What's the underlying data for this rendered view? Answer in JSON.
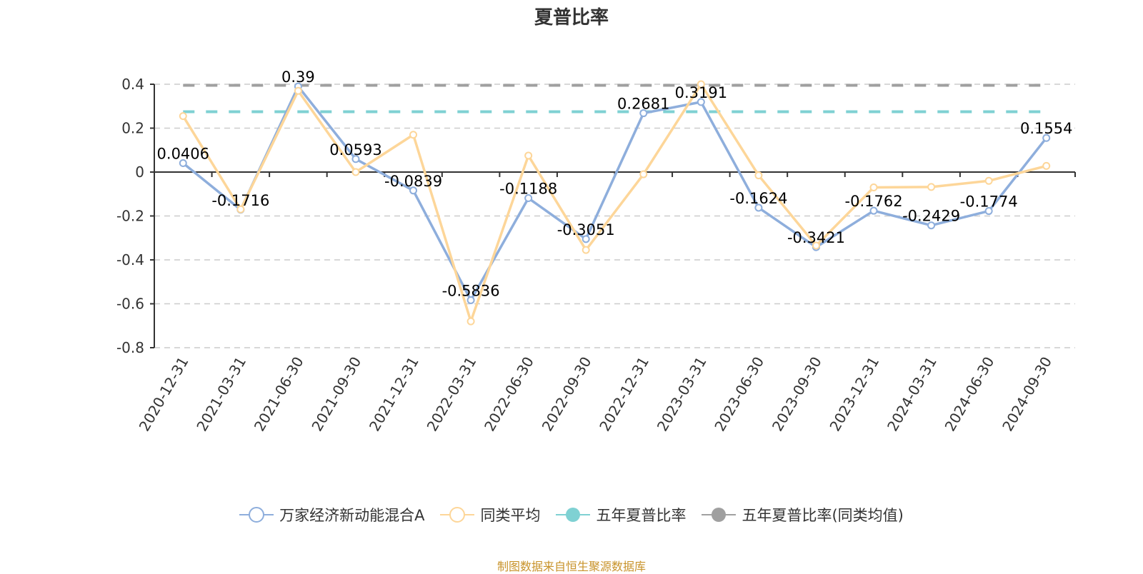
{
  "title": "夏普比率",
  "source": "制图数据来自恒生聚源数据库",
  "legend": [
    {
      "label": "万家经济新动能混合A",
      "color": "#8eaedc",
      "marker": "hollow-circle"
    },
    {
      "label": "同类平均",
      "color": "#fdd699",
      "marker": "hollow-circle"
    },
    {
      "label": "五年夏普比率",
      "color": "#7fd1d3",
      "marker": "filled-circle"
    },
    {
      "label": "五年夏普比率(同类均值)",
      "color": "#a0a0a0",
      "marker": "filled-circle"
    }
  ],
  "chart_data": {
    "type": "line",
    "title": "夏普比率",
    "xlabel": "",
    "ylabel": "",
    "ylim": [
      -0.8,
      0.4
    ],
    "yticks": [
      0.4,
      0.2,
      0,
      -0.2,
      -0.4,
      -0.6,
      -0.8
    ],
    "ytick_labels": [
      "0.4",
      "0.2",
      "0",
      "-0.2",
      "-0.4",
      "-0.6",
      "-0.8"
    ],
    "grid": true,
    "legend_position": "bottom",
    "categories": [
      "2020-12-31",
      "2021-03-31",
      "2021-06-30",
      "2021-09-30",
      "2021-12-31",
      "2022-03-31",
      "2022-06-30",
      "2022-09-30",
      "2022-12-31",
      "2023-03-31",
      "2023-06-30",
      "2023-09-30",
      "2023-12-31",
      "2024-03-31",
      "2024-06-30",
      "2024-09-30"
    ],
    "series": [
      {
        "name": "万家经济新动能混合A",
        "color": "#8eaedc",
        "labeled": true,
        "values": [
          0.0406,
          -0.1716,
          0.39,
          0.0593,
          -0.0839,
          -0.5836,
          -0.1188,
          -0.3051,
          0.2681,
          0.3191,
          -0.1624,
          -0.3421,
          -0.1762,
          -0.2429,
          -0.1774,
          0.1554
        ]
      },
      {
        "name": "同类平均",
        "color": "#fdd699",
        "labeled": false,
        "values": [
          0.255,
          -0.17,
          0.37,
          0.0,
          0.17,
          -0.68,
          0.075,
          -0.355,
          -0.01,
          0.4,
          -0.015,
          -0.335,
          -0.07,
          -0.068,
          -0.04,
          0.028
        ]
      },
      {
        "name": "五年夏普比率",
        "color": "#7fd1d3",
        "type": "hline",
        "value": 0.275
      },
      {
        "name": "五年夏普比率(同类均值)",
        "color": "#a0a0a0",
        "type": "hline",
        "value": 0.395
      }
    ]
  }
}
